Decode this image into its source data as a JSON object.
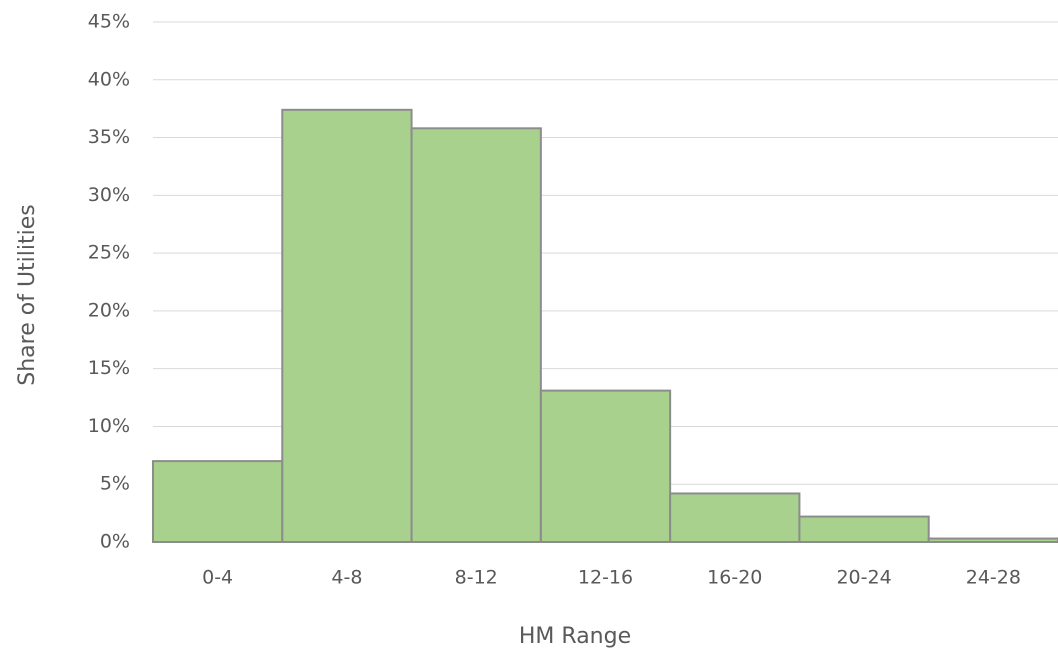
{
  "chart_data": {
    "type": "bar",
    "x_label": "HM Range",
    "y_label": "Share of Utilities",
    "categories": [
      "0-4",
      "4-8",
      "8-12",
      "12-16",
      "16-20",
      "20-24",
      "24-28"
    ],
    "values": [
      7,
      37.4,
      35.8,
      13.1,
      4.2,
      2.2,
      0.3
    ],
    "color": "#a9d18e",
    "ylim": [
      0,
      45
    ],
    "yticks": [
      {
        "value": 0,
        "label": "0%"
      },
      {
        "value": 5,
        "label": "5%"
      },
      {
        "value": 10,
        "label": "10%"
      },
      {
        "value": 15,
        "label": "15%"
      },
      {
        "value": 20,
        "label": "20%"
      },
      {
        "value": 25,
        "label": "25%"
      },
      {
        "value": 30,
        "label": "30%"
      },
      {
        "value": 35,
        "label": "35%"
      },
      {
        "value": 40,
        "label": "40%"
      },
      {
        "value": 45,
        "label": "45%"
      }
    ],
    "grid": true
  }
}
